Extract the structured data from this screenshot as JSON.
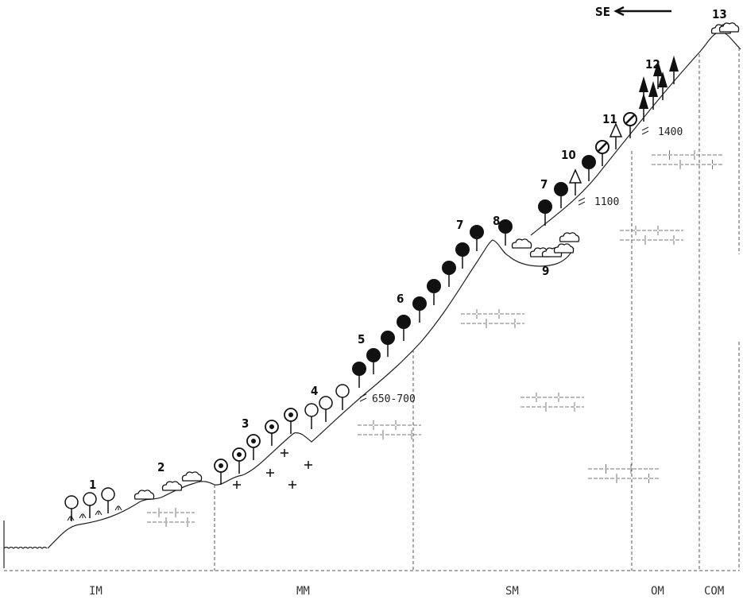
{
  "direction": "SE",
  "unit_labels": [
    "1",
    "2",
    "3",
    "4",
    "5",
    "6",
    "7",
    "8",
    "9",
    "7",
    "10",
    "11",
    "12",
    "13"
  ],
  "altitudes": [
    "650-700",
    "1100",
    "1400"
  ],
  "zones": [
    "IM",
    "MM",
    "SM",
    "OM",
    "COM"
  ]
}
